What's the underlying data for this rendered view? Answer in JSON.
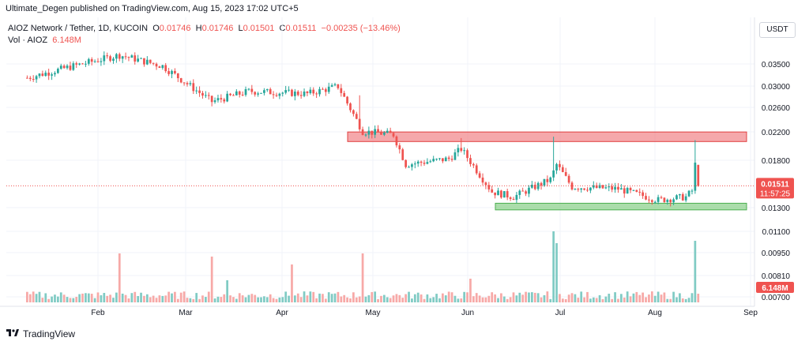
{
  "header": {
    "publish_line": "Ultimate_Degen published on TradingView.com, Aug 15, 2023 17:02 UTC+5"
  },
  "legend": {
    "symbol": "AIOZ Network / Tether, 1D, KUCOIN",
    "o_label": "O",
    "o_value": "0.01746",
    "h_label": "H",
    "h_value": "0.01746",
    "l_label": "L",
    "l_value": "0.01501",
    "c_label": "C",
    "c_value": "0.01511",
    "change": "−0.00235 (−13.46%)",
    "vol_label": "Vol · AIOZ",
    "vol_value": "6.148M"
  },
  "currency_button": "USDT",
  "footer": {
    "brand": "TradingView"
  },
  "colors": {
    "up": "#26a69a",
    "down": "#ef5350",
    "up_volume": "#80cbc4",
    "down_volume": "#f7a9a7",
    "resistance_zone": "#f28b8f",
    "support_zone": "#8fd18f"
  },
  "chart_data": {
    "type": "candlestick",
    "pair": "AIOZ/USDT",
    "timeframe": "1D",
    "exchange": "KUCOIN",
    "price_axis": {
      "ticks": [
        "0.03500",
        "0.03000",
        "0.02600",
        "0.02200",
        "0.01800",
        "0.01300",
        "0.01100",
        "0.00950",
        "0.00810",
        "0.00700"
      ],
      "scale": "log"
    },
    "time_axis": {
      "ticks": [
        "Feb",
        "Mar",
        "Apr",
        "May",
        "Jun",
        "Jul",
        "Aug",
        "Sep"
      ]
    },
    "last_price": "0.01511",
    "countdown": "11:57:25",
    "last_volume": "6.148M",
    "zones": [
      {
        "name": "resistance",
        "low": 0.0205,
        "high": 0.0219
      },
      {
        "name": "support",
        "low": 0.0128,
        "high": 0.0134
      }
    ],
    "anchors": [
      {
        "date": "2023-01-09",
        "price": 0.0318
      },
      {
        "date": "2023-01-24",
        "price": 0.0345
      },
      {
        "date": "2023-02-08",
        "price": 0.0372
      },
      {
        "date": "2023-02-22",
        "price": 0.0345
      },
      {
        "date": "2023-03-10",
        "price": 0.027
      },
      {
        "date": "2023-03-22",
        "price": 0.029
      },
      {
        "date": "2023-04-10",
        "price": 0.0285
      },
      {
        "date": "2023-04-20",
        "price": 0.03
      },
      {
        "date": "2023-04-28",
        "price": 0.022
      },
      {
        "date": "2023-05-08",
        "price": 0.0215
      },
      {
        "date": "2023-05-12",
        "price": 0.0175
      },
      {
        "date": "2023-05-26",
        "price": 0.0182
      },
      {
        "date": "2023-05-30",
        "price": 0.0195
      },
      {
        "date": "2023-06-09",
        "price": 0.0145
      },
      {
        "date": "2023-06-16",
        "price": 0.014
      },
      {
        "date": "2023-06-28",
        "price": 0.0158
      },
      {
        "date": "2023-06-30",
        "price": 0.0175
      },
      {
        "date": "2023-07-05",
        "price": 0.015
      },
      {
        "date": "2023-07-20",
        "price": 0.0148
      },
      {
        "date": "2023-08-02",
        "price": 0.0137
      },
      {
        "date": "2023-08-11",
        "price": 0.014
      },
      {
        "date": "2023-08-13",
        "price": 0.0146
      },
      {
        "date": "2023-08-14",
        "price": 0.0175
      },
      {
        "date": "2023-08-15",
        "price": 0.0151
      }
    ]
  }
}
